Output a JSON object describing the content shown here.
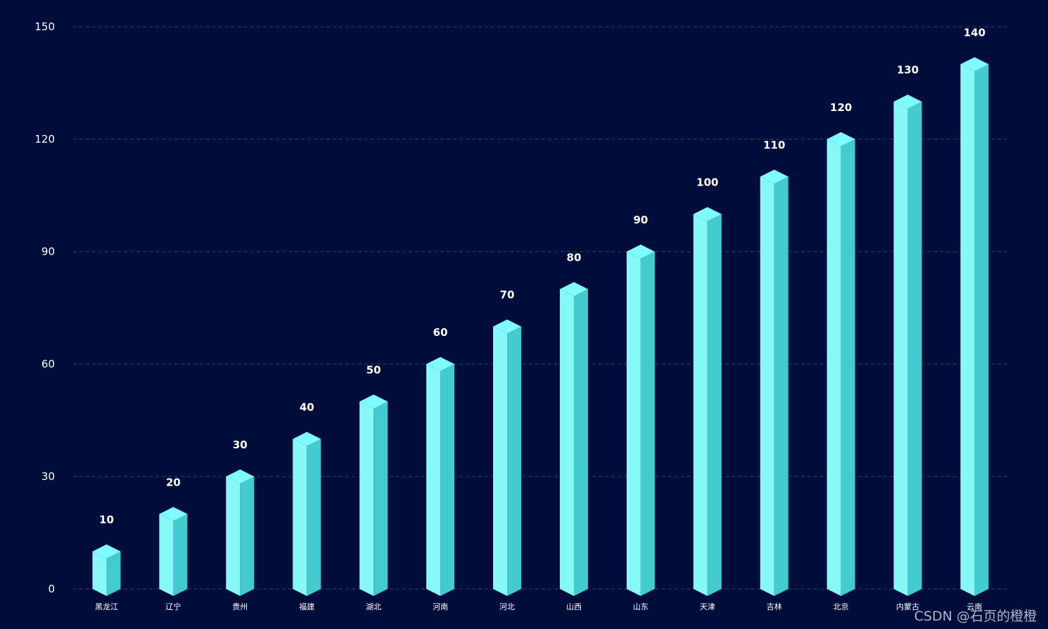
{
  "chart_data": {
    "type": "bar",
    "title": "",
    "xlabel": "",
    "ylabel": "",
    "categories": [
      "黑龙江",
      "辽宁",
      "贵州",
      "福建",
      "湖北",
      "河南",
      "河北",
      "山西",
      "山东",
      "天津",
      "吉林",
      "北京",
      "内蒙古",
      "云南"
    ],
    "values": [
      10,
      20,
      30,
      40,
      50,
      60,
      70,
      80,
      90,
      100,
      110,
      120,
      130,
      140
    ],
    "ylim": [
      0,
      150
    ],
    "yticks": [
      0,
      30,
      60,
      90,
      120,
      150
    ],
    "grid": true,
    "legend": "none",
    "style": "3d-column",
    "colors": {
      "background": "#000d3a",
      "bar_front": "#86f8f6",
      "bar_side": "#44cbd0",
      "bar_top": "#7ffcff",
      "grid": "#1e4a6e",
      "text": "#ffffff"
    }
  },
  "watermark": "CSDN @石页的橙橙"
}
